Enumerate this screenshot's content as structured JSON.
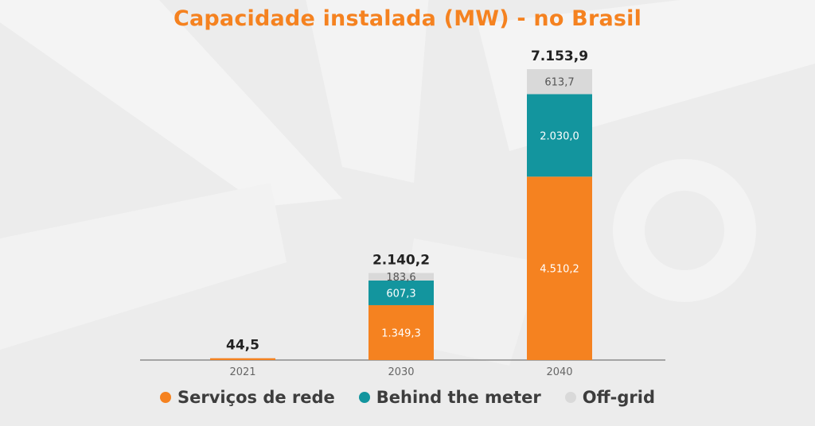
{
  "chart_data": {
    "type": "bar",
    "stacked": true,
    "title": "Capacidade instalada (MW) - no Brasil",
    "xlabel": "",
    "ylabel": "",
    "categories": [
      "2021",
      "2030",
      "2040"
    ],
    "series": [
      {
        "name": "Serviços de rede",
        "color": "#f58220",
        "values": [
          44.5,
          1349.3,
          4510.2
        ],
        "labels": [
          "",
          "1.349,3",
          "4.510,2"
        ]
      },
      {
        "name": "Behind the meter",
        "color": "#13959e",
        "values": [
          0,
          607.3,
          2030.0
        ],
        "labels": [
          "",
          "607,3",
          "2.030,0"
        ]
      },
      {
        "name": "Off-grid",
        "color": "#d9d9d9",
        "values": [
          0,
          183.6,
          613.7
        ],
        "labels": [
          "",
          "183,6",
          "613,7"
        ]
      }
    ],
    "totals": [
      44.5,
      2140.2,
      7153.9
    ],
    "total_labels": [
      "44,5",
      "2.140,2",
      "7.153,9"
    ],
    "ylim": [
      0,
      7153.9
    ],
    "grid": false,
    "legend_position": "bottom"
  },
  "colors": {
    "title": "#f58220",
    "axis": "#7a7a7a",
    "tick_label": "#666666",
    "total_label": "#222222",
    "inner_label": "#ffffff",
    "off_grid_label": "#555555"
  }
}
